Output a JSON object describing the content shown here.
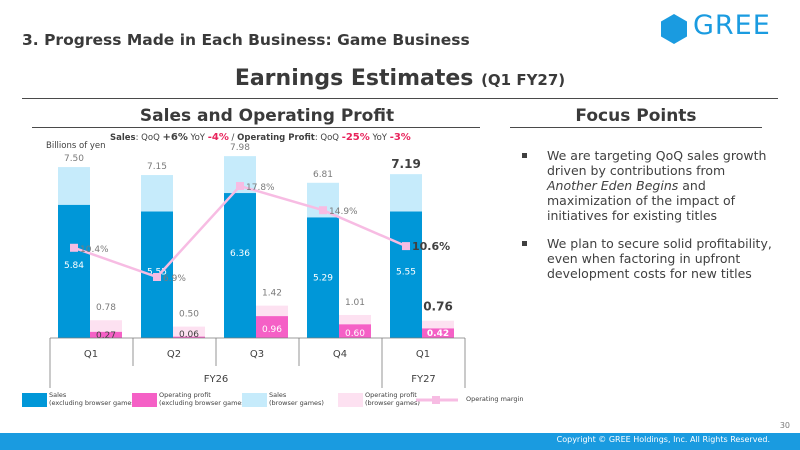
{
  "header": {
    "slide_heading": "3. Progress Made in Each Business: Game Business",
    "logo_text": "GREE",
    "main_title": "Earnings Estimates",
    "main_title_sub": "(Q1 FY27)"
  },
  "left_section": {
    "title": "Sales and Operating Profit"
  },
  "right_section": {
    "title": "Focus Points"
  },
  "summary": {
    "sales_label": "Sales",
    "qoq_label": ": QoQ ",
    "sales_qoq": "+6",
    "pct": "%",
    "yoy_label": " YoY ",
    "sales_yoy": "-4",
    "separator": " / ",
    "op_label": "Operating Profit",
    "op_qoq_label": ": QoQ ",
    "op_qoq": "-25",
    "op_yoy_label": " YoY ",
    "op_yoy": "-3"
  },
  "focus_points": [
    {
      "before": "We are targeting QoQ sales growth driven by contributions from ",
      "italic": "Another Eden Begins",
      "after": " and maximization of the impact of initiatives for existing titles"
    },
    {
      "before": "We plan to secure solid profitability, even when factoring in upfront development costs for new titles",
      "italic": "",
      "after": ""
    }
  ],
  "footer": {
    "copyright": "Copyright © GREE Holdings, Inc. All Rights Reserved.",
    "page": "30"
  },
  "colors": {
    "sales_ex_browser": "#0097d8",
    "sales_browser": "#c6ebfb",
    "op_ex_browser": "#f560c6",
    "op_browser": "#fde1f1",
    "margin_line": "#f7bce3",
    "brand": "#1a9be0"
  },
  "chart_data": {
    "type": "bar",
    "units": "Billions of yen",
    "categories": [
      "Q1",
      "Q2",
      "Q3",
      "Q4",
      "Q1"
    ],
    "fiscal_years": [
      {
        "label": "FY26",
        "quarters": [
          0,
          1,
          2,
          3
        ]
      },
      {
        "label": "FY27",
        "quarters": [
          4
        ]
      }
    ],
    "sales_total": [
      "7.50",
      "7.15",
      "7.98",
      "6.81",
      "7.19"
    ],
    "sales_ex_browser": [
      "5.84",
      "5.55",
      "6.36",
      "5.29",
      "5.55"
    ],
    "op_total": [
      "0.78",
      "0.50",
      "1.42",
      "1.01",
      "0.76"
    ],
    "op_ex_browser": [
      "0.27",
      "0.06",
      "0.96",
      "0.60",
      "0.42"
    ],
    "operating_margin": [
      "10.4%",
      "6.9%",
      "17.8%",
      "14.9%",
      "10.6%"
    ],
    "ylim": [
      0,
      8.6
    ],
    "highlight_index": 4,
    "legend": [
      {
        "line1": "Sales",
        "line2": "(excluding browser games)"
      },
      {
        "line1": "Operating profit",
        "line2": "(excluding browser games)"
      },
      {
        "line1": "Sales",
        "line2": "(browser games)"
      },
      {
        "line1": "Operating profit",
        "line2": "(browser games)"
      },
      {
        "line1": "Operating margin",
        "line2": ""
      }
    ]
  }
}
